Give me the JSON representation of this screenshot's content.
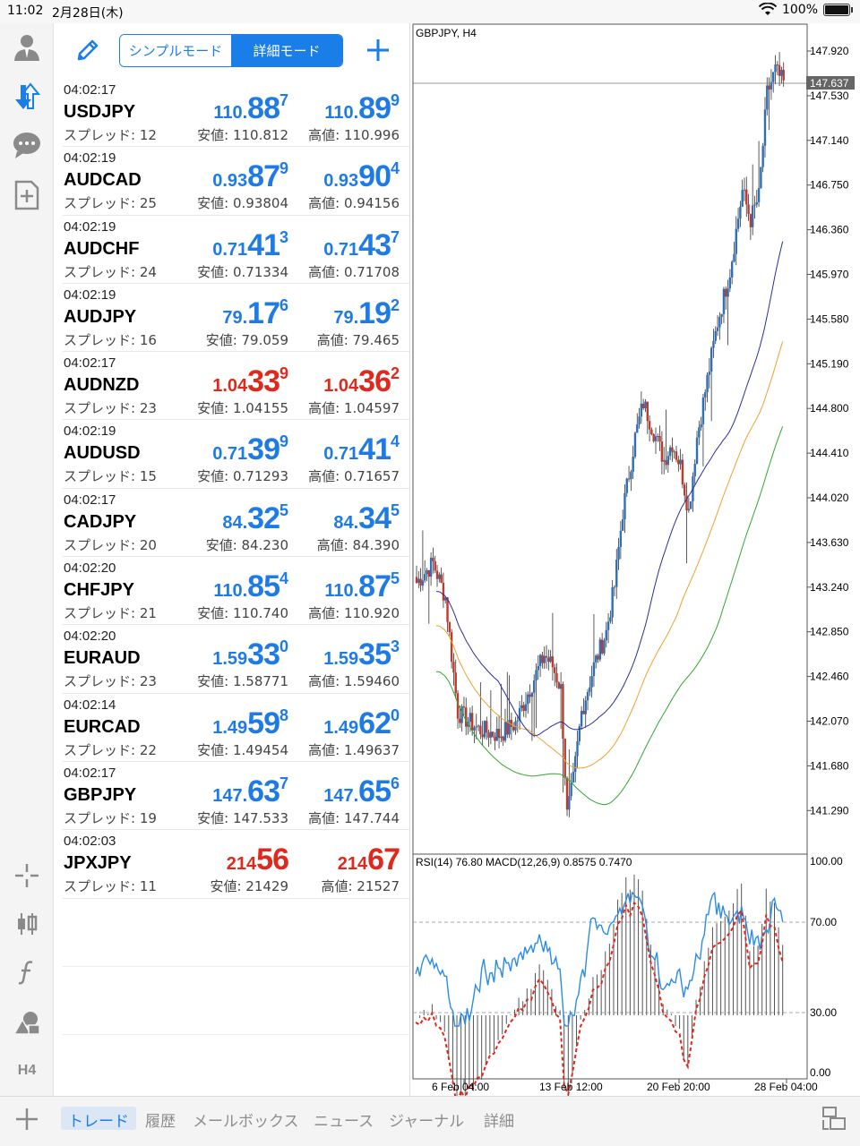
{
  "status_bar": {
    "time": "11:02",
    "date": "2月28日(木)",
    "battery": "100%"
  },
  "toolbar": {
    "mode_simple": "シンプルモード",
    "mode_detail": "詳細モード",
    "active_mode": "detail"
  },
  "quotes": [
    {
      "time": "04:02:17",
      "symbol": "USDJPY",
      "spread": "スプレッド: 12",
      "dir": "up",
      "bid": {
        "small": "110.",
        "big": "88",
        "pip": "7"
      },
      "ask": {
        "small": "110.",
        "big": "89",
        "pip": "9"
      },
      "low": "安値: 110.812",
      "high": "高値: 110.996"
    },
    {
      "time": "04:02:19",
      "symbol": "AUDCAD",
      "spread": "スプレッド: 25",
      "dir": "up",
      "bid": {
        "small": "0.93",
        "big": "87",
        "pip": "9"
      },
      "ask": {
        "small": "0.93",
        "big": "90",
        "pip": "4"
      },
      "low": "安値: 0.93804",
      "high": "高値: 0.94156"
    },
    {
      "time": "04:02:19",
      "symbol": "AUDCHF",
      "spread": "スプレッド: 24",
      "dir": "up",
      "bid": {
        "small": "0.71",
        "big": "41",
        "pip": "3"
      },
      "ask": {
        "small": "0.71",
        "big": "43",
        "pip": "7"
      },
      "low": "安値: 0.71334",
      "high": "高値: 0.71708"
    },
    {
      "time": "04:02:19",
      "symbol": "AUDJPY",
      "spread": "スプレッド: 16",
      "dir": "up",
      "bid": {
        "small": "79.",
        "big": "17",
        "pip": "6"
      },
      "ask": {
        "small": "79.",
        "big": "19",
        "pip": "2"
      },
      "low": "安値: 79.059",
      "high": "高値: 79.465"
    },
    {
      "time": "04:02:17",
      "symbol": "AUDNZD",
      "spread": "スプレッド: 23",
      "dir": "down",
      "bid": {
        "small": "1.04",
        "big": "33",
        "pip": "9"
      },
      "ask": {
        "small": "1.04",
        "big": "36",
        "pip": "2"
      },
      "low": "安値: 1.04155",
      "high": "高値: 1.04597"
    },
    {
      "time": "04:02:19",
      "symbol": "AUDUSD",
      "spread": "スプレッド: 15",
      "dir": "up",
      "bid": {
        "small": "0.71",
        "big": "39",
        "pip": "9"
      },
      "ask": {
        "small": "0.71",
        "big": "41",
        "pip": "4"
      },
      "low": "安値: 0.71293",
      "high": "高値: 0.71657"
    },
    {
      "time": "04:02:17",
      "symbol": "CADJPY",
      "spread": "スプレッド: 20",
      "dir": "up",
      "bid": {
        "small": "84.",
        "big": "32",
        "pip": "5"
      },
      "ask": {
        "small": "84.",
        "big": "34",
        "pip": "5"
      },
      "low": "安値: 84.230",
      "high": "高値: 84.390"
    },
    {
      "time": "04:02:20",
      "symbol": "CHFJPY",
      "spread": "スプレッド: 21",
      "dir": "up",
      "bid": {
        "small": "110.",
        "big": "85",
        "pip": "4"
      },
      "ask": {
        "small": "110.",
        "big": "87",
        "pip": "5"
      },
      "low": "安値: 110.740",
      "high": "高値: 110.920"
    },
    {
      "time": "04:02:20",
      "symbol": "EURAUD",
      "spread": "スプレッド: 23",
      "dir": "up",
      "bid": {
        "small": "1.59",
        "big": "33",
        "pip": "0"
      },
      "ask": {
        "small": "1.59",
        "big": "35",
        "pip": "3"
      },
      "low": "安値: 1.58771",
      "high": "高値: 1.59460"
    },
    {
      "time": "04:02:14",
      "symbol": "EURCAD",
      "spread": "スプレッド: 22",
      "dir": "up",
      "bid": {
        "small": "1.49",
        "big": "59",
        "pip": "8"
      },
      "ask": {
        "small": "1.49",
        "big": "62",
        "pip": "0"
      },
      "low": "安値: 1.49454",
      "high": "高値: 1.49637"
    },
    {
      "time": "04:02:17",
      "symbol": "GBPJPY",
      "spread": "スプレッド: 19",
      "dir": "up",
      "bid": {
        "small": "147.",
        "big": "63",
        "pip": "7"
      },
      "ask": {
        "small": "147.",
        "big": "65",
        "pip": "6"
      },
      "low": "安値: 147.533",
      "high": "高値: 147.744"
    },
    {
      "time": "04:02:03",
      "symbol": "JPXJPY",
      "spread": "スプレッド: 11",
      "dir": "down",
      "bid": {
        "small": "214",
        "big": "56",
        "pip": ""
      },
      "ask": {
        "small": "214",
        "big": "67",
        "pip": ""
      },
      "low": "安値: 21429",
      "high": "高値: 21527"
    }
  ],
  "chart": {
    "title": "GBPJPY, H4",
    "current_price": "147.637",
    "price_axis": [
      "147.920",
      "147.530",
      "147.140",
      "146.750",
      "146.360",
      "145.970",
      "145.580",
      "145.190",
      "144.800",
      "144.410",
      "144.020",
      "143.630",
      "143.240",
      "142.850",
      "142.460",
      "142.070",
      "141.680",
      "141.290"
    ],
    "indicator_label": "RSI(14) 76.80 MACD(12,26,9) 0.8575 0.7470",
    "indicator_axis": [
      "100.00",
      "70.00",
      "30.00",
      "0.00"
    ],
    "time_axis": [
      "6 Feb 04:00",
      "13 Feb 12:00",
      "20 Feb 20:00",
      "28 Feb 04:00"
    ],
    "colors": {
      "bull": "#2e6fb8",
      "bear": "#c0392b",
      "ma_fast": "#2c2c9e",
      "ma_mid": "#f0a030",
      "ma_slow": "#2ea82e",
      "rsi": "#2a8ce8",
      "macd_signal": "#e0281c"
    }
  },
  "tabs": [
    {
      "label": "トレード",
      "active": true
    },
    {
      "label": "履歴",
      "active": false
    },
    {
      "label": "メールボックス",
      "active": false
    },
    {
      "label": "ニュース",
      "active": false
    },
    {
      "label": "ジャーナル",
      "active": false
    },
    {
      "label": "詳細",
      "active": false
    }
  ],
  "rail_icons": [
    "account-icon",
    "trade-icon",
    "chat-icon",
    "document-icon",
    "crosshair-icon",
    "candle-icon",
    "function-icon",
    "objects-icon",
    "timeframe-icon"
  ],
  "rail": {
    "timeframe": "H4"
  }
}
